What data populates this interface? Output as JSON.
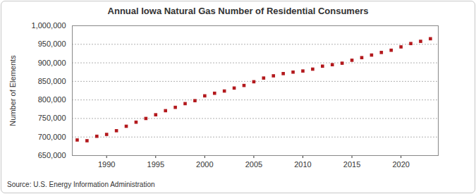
{
  "chart_data": {
    "type": "scatter",
    "title": "Annual Iowa Natural Gas Number of Residential Consumers",
    "y_label": "Number of Elements",
    "source": "Source: U.S. Energy Information Administration",
    "x": [
      1987,
      1988,
      1989,
      1990,
      1991,
      1992,
      1993,
      1994,
      1995,
      1996,
      1997,
      1998,
      1999,
      2000,
      2001,
      2002,
      2003,
      2004,
      2005,
      2006,
      2007,
      2008,
      2009,
      2010,
      2011,
      2012,
      2013,
      2014,
      2015,
      2016,
      2017,
      2018,
      2019,
      2020,
      2021,
      2022,
      2023
    ],
    "values": [
      692000,
      690000,
      702000,
      707000,
      717000,
      729000,
      740000,
      750000,
      760000,
      771000,
      780000,
      790000,
      798000,
      811000,
      818000,
      824000,
      832000,
      839000,
      849000,
      859000,
      865000,
      871000,
      875000,
      878000,
      883000,
      891000,
      895000,
      899000,
      907000,
      914000,
      921000,
      928000,
      934000,
      943000,
      952000,
      958000,
      965000
    ],
    "color": "#b3191d",
    "marker": "square",
    "xlim": [
      1986.5,
      2023.8
    ],
    "xticks": [
      1990,
      1995,
      2000,
      2005,
      2010,
      2015,
      2020
    ],
    "ylim": [
      650000,
      1000000
    ],
    "yticks": [
      {
        "value": 650000,
        "label": "650,000"
      },
      {
        "value": 700000,
        "label": "700,000"
      },
      {
        "value": 750000,
        "label": "750,000"
      },
      {
        "value": 800000,
        "label": "800,000"
      },
      {
        "value": 850000,
        "label": "850,000"
      },
      {
        "value": 900000,
        "label": "900,000"
      },
      {
        "value": 950000,
        "label": "950,000"
      },
      {
        "value": 1000000,
        "label": "1,000,000"
      }
    ],
    "grid": true
  }
}
